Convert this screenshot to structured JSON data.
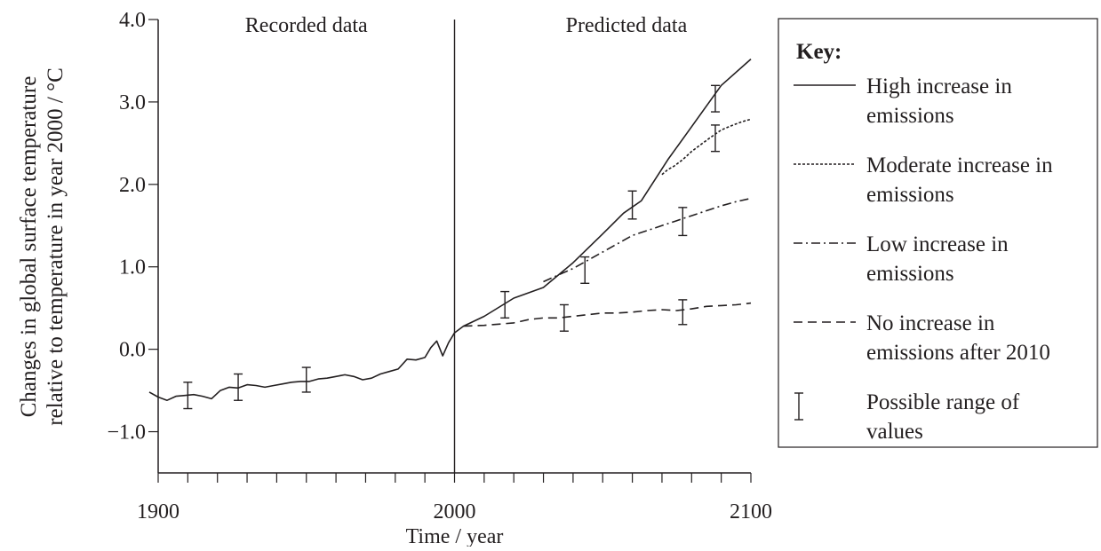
{
  "chart_data": {
    "type": "line",
    "xlabel": "Time / year",
    "ylabel_lines": [
      "Changes in global surface temperature",
      "relative to temperature in year 2000 / °C"
    ],
    "xlim": [
      1900,
      2100
    ],
    "ylim": [
      -1.5,
      4.0
    ],
    "x_ticks": [
      1900,
      2000,
      2100
    ],
    "x_minor_step": 10,
    "y_ticks": [
      4.0,
      3.0,
      2.0,
      1.0,
      0.0,
      -1.0
    ],
    "y_tick_labels": [
      "4.0",
      "3.0",
      "2.0",
      "1.0",
      "0.0",
      "−1.0"
    ],
    "divider_year": 2000,
    "region_labels": [
      {
        "text": "Recorded data",
        "x": 1950
      },
      {
        "text": "Predicted data",
        "x": 2058
      }
    ],
    "legend_title": "Key:",
    "legend_entries": [
      {
        "lines": [
          "High increase in",
          "emissions"
        ],
        "style": "solid"
      },
      {
        "lines": [
          "Moderate increase in",
          "emissions"
        ],
        "style": "dotted"
      },
      {
        "lines": [
          "Low increase in",
          "emissions"
        ],
        "style": "dashdot"
      },
      {
        "lines": [
          "No increase in",
          "emissions after 2010"
        ],
        "style": "dashed"
      },
      {
        "lines": [
          "Possible range of",
          "values"
        ],
        "style": "errorbar"
      }
    ],
    "series": [
      {
        "key": "recorded",
        "style": "solid",
        "x": [
          1897,
          1900,
          1903,
          1906,
          1909,
          1912,
          1915,
          1918,
          1921,
          1924,
          1927,
          1930,
          1933,
          1936,
          1939,
          1942,
          1945,
          1948,
          1951,
          1954,
          1957,
          1960,
          1963,
          1966,
          1969,
          1972,
          1975,
          1978,
          1981,
          1984,
          1987,
          1990,
          1992,
          1994,
          1996,
          1998,
          2000
        ],
        "y": [
          -0.52,
          -0.58,
          -0.62,
          -0.57,
          -0.56,
          -0.55,
          -0.57,
          -0.6,
          -0.5,
          -0.46,
          -0.47,
          -0.43,
          -0.44,
          -0.46,
          -0.44,
          -0.42,
          -0.4,
          -0.39,
          -0.39,
          -0.36,
          -0.35,
          -0.33,
          -0.31,
          -0.33,
          -0.37,
          -0.35,
          -0.3,
          -0.27,
          -0.24,
          -0.12,
          -0.13,
          -0.1,
          0.02,
          0.1,
          -0.08,
          0.08,
          0.2
        ]
      },
      {
        "key": "high",
        "style": "solid",
        "x": [
          2000,
          2003,
          2010,
          2020,
          2030,
          2040,
          2050,
          2057,
          2063,
          2072,
          2080,
          2090,
          2100
        ],
        "y": [
          0.2,
          0.28,
          0.4,
          0.62,
          0.75,
          1.05,
          1.4,
          1.65,
          1.8,
          2.3,
          2.7,
          3.2,
          3.52
        ]
      },
      {
        "key": "moderate",
        "style": "dotted",
        "x": [
          2070,
          2072,
          2074,
          2077,
          2080,
          2083,
          2086,
          2090,
          2094,
          2097,
          2100
        ],
        "y": [
          2.12,
          2.18,
          2.22,
          2.3,
          2.4,
          2.48,
          2.56,
          2.66,
          2.72,
          2.76,
          2.79
        ]
      },
      {
        "key": "low",
        "style": "dashdot",
        "x": [
          2030,
          2035,
          2040,
          2045,
          2050,
          2055,
          2060,
          2065,
          2070,
          2075,
          2080,
          2085,
          2090,
          2095,
          2100
        ],
        "y": [
          0.82,
          0.9,
          0.98,
          1.08,
          1.18,
          1.28,
          1.38,
          1.44,
          1.5,
          1.56,
          1.62,
          1.68,
          1.74,
          1.79,
          1.83
        ]
      },
      {
        "key": "none",
        "style": "dashed",
        "x": [
          2003,
          2010,
          2020,
          2025,
          2030,
          2035,
          2040,
          2045,
          2050,
          2055,
          2060,
          2065,
          2070,
          2075,
          2080,
          2085,
          2090,
          2095,
          2100
        ],
        "y": [
          0.28,
          0.29,
          0.32,
          0.36,
          0.38,
          0.38,
          0.4,
          0.42,
          0.44,
          0.44,
          0.45,
          0.47,
          0.48,
          0.47,
          0.49,
          0.52,
          0.53,
          0.54,
          0.56
        ]
      }
    ],
    "error_bars": [
      {
        "x": 1910,
        "low": -0.72,
        "high": -0.4
      },
      {
        "x": 1927,
        "low": -0.62,
        "high": -0.3
      },
      {
        "x": 1950,
        "low": -0.52,
        "high": -0.22
      },
      {
        "x": 2017,
        "low": 0.38,
        "high": 0.7
      },
      {
        "x": 2037,
        "low": 0.22,
        "high": 0.54
      },
      {
        "x": 2044,
        "low": 0.8,
        "high": 1.12
      },
      {
        "x": 2060,
        "low": 1.58,
        "high": 1.92
      },
      {
        "x": 2077,
        "low": 1.38,
        "high": 1.72
      },
      {
        "x": 2077,
        "low": 0.3,
        "high": 0.6
      },
      {
        "x": 2088,
        "low": 2.4,
        "high": 2.72
      },
      {
        "x": 2088,
        "low": 2.88,
        "high": 3.2
      }
    ]
  }
}
